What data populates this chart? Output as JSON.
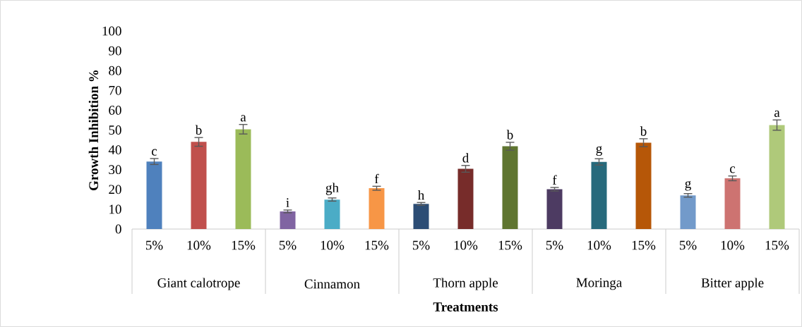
{
  "chart_data": {
    "type": "bar",
    "xlabel": "Treatments",
    "ylabel": "Growth Inhibition %",
    "ylim": [
      0,
      100
    ],
    "yticks": [
      0,
      10,
      20,
      30,
      40,
      50,
      60,
      70,
      80,
      90,
      100
    ],
    "categories": [
      "5%",
      "10%",
      "15%",
      "5%",
      "10%",
      "15%",
      "5%",
      "10%",
      "15%",
      "5%",
      "10%",
      "15%",
      "5%",
      "10%",
      "15%"
    ],
    "values": [
      34.1,
      44.0,
      50.4,
      8.9,
      14.9,
      20.6,
      12.7,
      30.4,
      41.8,
      20.1,
      33.9,
      43.6,
      17.0,
      25.6,
      52.5
    ],
    "errors": [
      1.5,
      2.2,
      2.4,
      0.7,
      0.8,
      1.0,
      0.7,
      1.7,
      2.0,
      0.9,
      1.6,
      2.0,
      0.9,
      1.2,
      2.6
    ],
    "colors": [
      "#4f81bd",
      "#c0504d",
      "#9bbb59",
      "#8064a2",
      "#4bacc6",
      "#f79646",
      "#2c4d75",
      "#772c2a",
      "#5f7530",
      "#4d3b62",
      "#276a7c",
      "#b65708",
      "#729aca",
      "#cd7371",
      "#afc97a"
    ],
    "value_labels": [
      "c",
      "b",
      "a",
      "i",
      "gh",
      "f",
      "h",
      "d",
      "b",
      "f",
      "g",
      "b",
      "g",
      "c",
      "a"
    ],
    "annotations": [
      "Giant calotrope",
      "Cinnamon",
      "Thorn apple",
      "Moringa",
      "Bitter apple"
    ]
  }
}
